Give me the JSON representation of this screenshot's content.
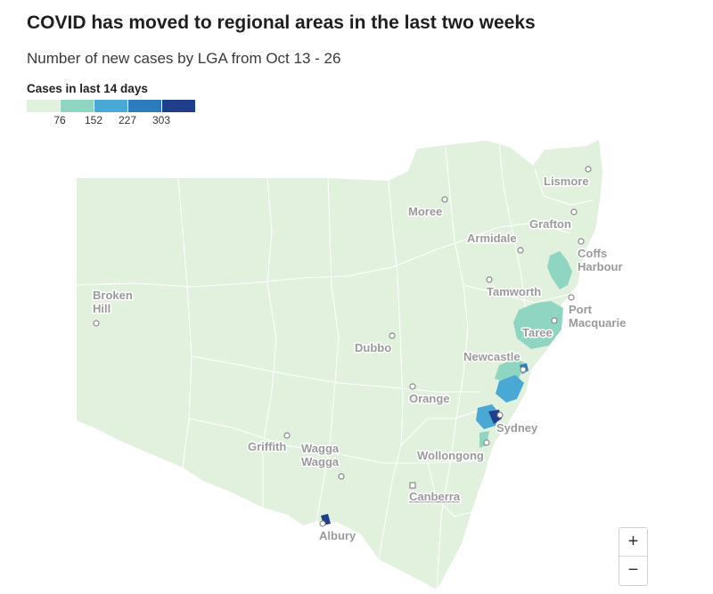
{
  "title": "COVID has moved to regional areas in the last two weeks",
  "subtitle": "Number of new cases by LGA from Oct 13 - 26",
  "legend": {
    "title": "Cases in last 14 days",
    "colors": [
      "#e2f1de",
      "#8fd5c1",
      "#4aa8d4",
      "#2b7bbd",
      "#1f3f8a"
    ],
    "ticks": [
      "76",
      "152",
      "227",
      "303"
    ]
  },
  "map": {
    "land_color": "#e2f1de",
    "border_color": "#ffffff",
    "cities": [
      {
        "name": "Lismore",
        "lines": [
          "Lismore"
        ]
      },
      {
        "name": "Moree",
        "lines": [
          "Moree"
        ]
      },
      {
        "name": "Grafton",
        "lines": [
          "Grafton"
        ]
      },
      {
        "name": "Armidale",
        "lines": [
          "Armidale"
        ]
      },
      {
        "name": "Coffs Harbour",
        "lines": [
          "Coffs",
          "Harbour"
        ]
      },
      {
        "name": "Broken Hill",
        "lines": [
          "Broken",
          "Hill"
        ]
      },
      {
        "name": "Tamworth",
        "lines": [
          "Tamworth"
        ]
      },
      {
        "name": "Port Macquarie",
        "lines": [
          "Port",
          "Macquarie"
        ]
      },
      {
        "name": "Taree",
        "lines": [
          "Taree"
        ]
      },
      {
        "name": "Dubbo",
        "lines": [
          "Dubbo"
        ]
      },
      {
        "name": "Newcastle",
        "lines": [
          "Newcastle"
        ]
      },
      {
        "name": "Orange",
        "lines": [
          "Orange"
        ]
      },
      {
        "name": "Sydney",
        "lines": [
          "Sydney"
        ]
      },
      {
        "name": "Griffith",
        "lines": [
          "Griffith"
        ]
      },
      {
        "name": "Wagga Wagga",
        "lines": [
          "Wagga",
          "Wagga"
        ]
      },
      {
        "name": "Wollongong",
        "lines": [
          "Wollongong"
        ]
      },
      {
        "name": "Canberra",
        "lines": [
          "Canberra"
        ]
      },
      {
        "name": "Albury",
        "lines": [
          "Albury"
        ]
      }
    ]
  },
  "zoom": {
    "in_label": "+",
    "out_label": "−"
  }
}
